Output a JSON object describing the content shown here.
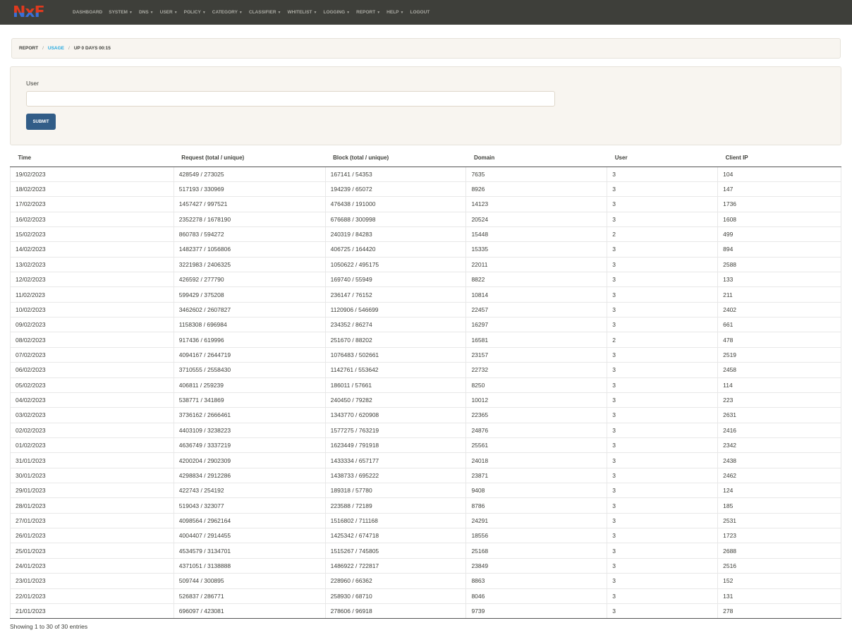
{
  "nav": {
    "logo": "NxF",
    "items": [
      {
        "label": "DASHBOARD",
        "dropdown": false
      },
      {
        "label": "SYSTEM",
        "dropdown": true
      },
      {
        "label": "DNS",
        "dropdown": true
      },
      {
        "label": "USER",
        "dropdown": true
      },
      {
        "label": "POLICY",
        "dropdown": true
      },
      {
        "label": "CATEGORY",
        "dropdown": true
      },
      {
        "label": "CLASSIFIER",
        "dropdown": true
      },
      {
        "label": "WHITELIST",
        "dropdown": true
      },
      {
        "label": "LOGGING",
        "dropdown": true
      },
      {
        "label": "REPORT",
        "dropdown": true
      },
      {
        "label": "HELP",
        "dropdown": true
      },
      {
        "label": "LOGOUT",
        "dropdown": false
      }
    ]
  },
  "breadcrumb": {
    "items": [
      "REPORT",
      "USAGE",
      "UP 0 DAYS 00:15"
    ],
    "separator": "/"
  },
  "form": {
    "user_label": "User",
    "user_value": "",
    "submit_label": "SUBMIT"
  },
  "table": {
    "headers": [
      "Time",
      "Request (total / unique)",
      "Block (total / unique)",
      "Domain",
      "User",
      "Client IP"
    ],
    "rows": [
      [
        "19/02/2023",
        "428549 / 273025",
        "167141 / 54353",
        "7635",
        "3",
        "104"
      ],
      [
        "18/02/2023",
        "517193 / 330969",
        "194239 / 65072",
        "8926",
        "3",
        "147"
      ],
      [
        "17/02/2023",
        "1457427 / 997521",
        "476438 / 191000",
        "14123",
        "3",
        "1736"
      ],
      [
        "16/02/2023",
        "2352278 / 1678190",
        "676688 / 300998",
        "20524",
        "3",
        "1608"
      ],
      [
        "15/02/2023",
        "860783 / 594272",
        "240319 / 84283",
        "15448",
        "2",
        "499"
      ],
      [
        "14/02/2023",
        "1482377 / 1056806",
        "406725 / 164420",
        "15335",
        "3",
        "894"
      ],
      [
        "13/02/2023",
        "3221983 / 2406325",
        "1050622 / 495175",
        "22011",
        "3",
        "2588"
      ],
      [
        "12/02/2023",
        "426592 / 277790",
        "169740 / 55949",
        "8822",
        "3",
        "133"
      ],
      [
        "11/02/2023",
        "599429 / 375208",
        "236147 / 76152",
        "10814",
        "3",
        "211"
      ],
      [
        "10/02/2023",
        "3462602 / 2607827",
        "1120906 / 546699",
        "22457",
        "3",
        "2402"
      ],
      [
        "09/02/2023",
        "1158308 / 696984",
        "234352 / 86274",
        "16297",
        "3",
        "661"
      ],
      [
        "08/02/2023",
        "917436 / 619996",
        "251670 / 88202",
        "16581",
        "2",
        "478"
      ],
      [
        "07/02/2023",
        "4094167 / 2644719",
        "1076483 / 502661",
        "23157",
        "3",
        "2519"
      ],
      [
        "06/02/2023",
        "3710555 / 2558430",
        "1142761 / 553642",
        "22732",
        "3",
        "2458"
      ],
      [
        "05/02/2023",
        "406811 / 259239",
        "186011 / 57661",
        "8250",
        "3",
        "114"
      ],
      [
        "04/02/2023",
        "538771 / 341869",
        "240450 / 79282",
        "10012",
        "3",
        "223"
      ],
      [
        "03/02/2023",
        "3736162 / 2666461",
        "1343770 / 620908",
        "22365",
        "3",
        "2631"
      ],
      [
        "02/02/2023",
        "4403109 / 3238223",
        "1577275 / 763219",
        "24876",
        "3",
        "2416"
      ],
      [
        "01/02/2023",
        "4636749 / 3337219",
        "1623449 / 791918",
        "25561",
        "3",
        "2342"
      ],
      [
        "31/01/2023",
        "4200204 / 2902309",
        "1433334 / 657177",
        "24018",
        "3",
        "2438"
      ],
      [
        "30/01/2023",
        "4298834 / 2912286",
        "1438733 / 695222",
        "23871",
        "3",
        "2462"
      ],
      [
        "29/01/2023",
        "422743 / 254192",
        "189318 / 57780",
        "9408",
        "3",
        "124"
      ],
      [
        "28/01/2023",
        "519043 / 323077",
        "223588 / 72189",
        "8786",
        "3",
        "185"
      ],
      [
        "27/01/2023",
        "4098564 / 2962164",
        "1516802 / 711168",
        "24291",
        "3",
        "2531"
      ],
      [
        "26/01/2023",
        "4004407 / 2914455",
        "1425342 / 674718",
        "18556",
        "3",
        "1723"
      ],
      [
        "25/01/2023",
        "4534579 / 3134701",
        "1515267 / 745805",
        "25168",
        "3",
        "2688"
      ],
      [
        "24/01/2023",
        "4371051 / 3138888",
        "1486922 / 722817",
        "23849",
        "3",
        "2516"
      ],
      [
        "23/01/2023",
        "509744 / 300895",
        "228960 / 66362",
        "8863",
        "3",
        "152"
      ],
      [
        "22/01/2023",
        "526837 / 286771",
        "258930 / 68710",
        "8046",
        "3",
        "131"
      ],
      [
        "21/01/2023",
        "696097 / 423081",
        "278606 / 96918",
        "9739",
        "3",
        "278"
      ]
    ]
  },
  "footer": {
    "info": "Showing 1 to 30 of 30 entries"
  },
  "colors": {
    "navbar": "#3e3f3a",
    "primary": "#325d88",
    "link": "#29abe0",
    "well": "#f8f5f0"
  }
}
